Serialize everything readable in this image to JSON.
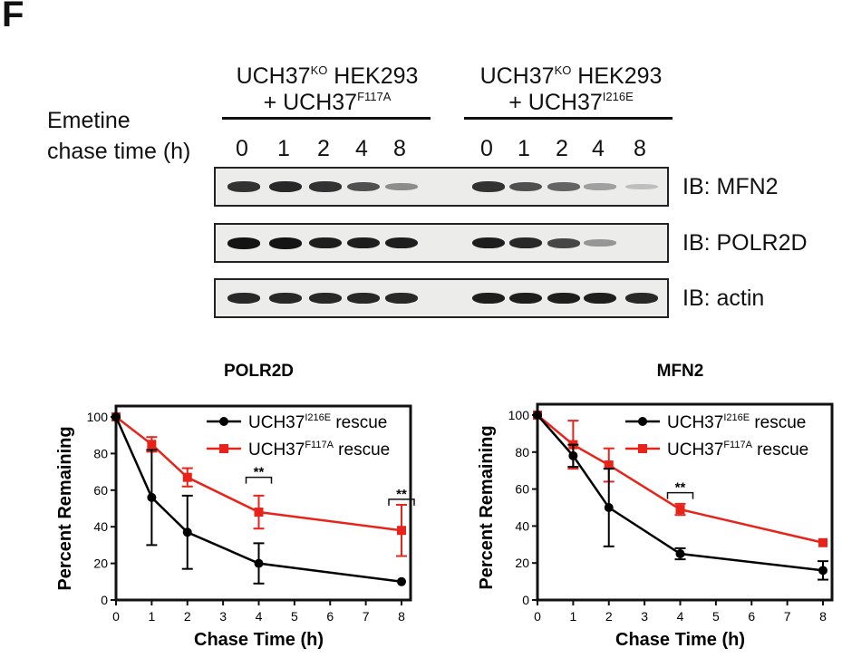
{
  "figure": {
    "panel_label": "F",
    "treatment_label_line1": "Emetine",
    "treatment_label_line2": "chase time (h)",
    "conditions": [
      {
        "line1_main": "UCH37",
        "line1_sup": "KO",
        "line1_rest": " HEK293",
        "line2_main": "+ UCH37",
        "line2_sup": "F117A"
      },
      {
        "line1_main": "UCH37",
        "line1_sup": "KO",
        "line1_rest": " HEK293",
        "line2_main": "+ UCH37",
        "line2_sup": "I216E"
      }
    ],
    "lane_labels": [
      "0",
      "1",
      "2",
      "4",
      "8",
      "0",
      "1",
      "2",
      "4",
      "8"
    ],
    "blots": [
      {
        "label": "IB: MFN2",
        "intensities": [
          0.85,
          0.9,
          0.85,
          0.7,
          0.4,
          0.85,
          0.7,
          0.6,
          0.3,
          0.15
        ]
      },
      {
        "label": "IB: POLR2D",
        "intensities": [
          1.0,
          1.0,
          0.95,
          0.95,
          0.95,
          0.95,
          0.9,
          0.75,
          0.35,
          0.0
        ]
      },
      {
        "label": "IB: actin",
        "intensities": [
          0.9,
          0.9,
          0.9,
          0.9,
          0.9,
          0.95,
          0.95,
          0.95,
          0.95,
          0.9
        ]
      }
    ]
  },
  "chart_data": [
    {
      "type": "line",
      "title": "POLR2D",
      "xlabel": "Chase Time (h)",
      "ylabel": "Percent Remaining",
      "xlim": [
        0,
        8
      ],
      "ylim": [
        0,
        100
      ],
      "xticks": [
        0,
        1,
        2,
        3,
        4,
        5,
        6,
        7,
        8
      ],
      "yticks": [
        0,
        20,
        40,
        60,
        80,
        100
      ],
      "grid": false,
      "legend": "top-right",
      "series": [
        {
          "name": "UCH37",
          "name_sup": "I216E",
          "name_suffix": " rescue",
          "color": "#000000",
          "marker": "circle",
          "x": [
            0,
            1,
            2,
            4,
            8
          ],
          "y": [
            100,
            56,
            37,
            20,
            10
          ],
          "err": [
            0,
            26,
            20,
            11,
            0
          ]
        },
        {
          "name": "UCH37",
          "name_sup": "F117A",
          "name_suffix": " rescue",
          "color": "#e8241a",
          "marker": "square",
          "x": [
            0,
            1,
            2,
            4,
            8
          ],
          "y": [
            100,
            85,
            67,
            48,
            38
          ],
          "err": [
            0,
            4,
            5,
            9,
            14
          ]
        }
      ],
      "annotations": [
        {
          "x": 4,
          "y": 67,
          "text": "**"
        },
        {
          "x": 8,
          "y": 55,
          "text": "**"
        }
      ]
    },
    {
      "type": "line",
      "title": "MFN2",
      "xlabel": "Chase Time (h)",
      "ylabel": "Percent Remaining",
      "xlim": [
        0,
        8
      ],
      "ylim": [
        0,
        100
      ],
      "xticks": [
        0,
        1,
        2,
        3,
        4,
        5,
        6,
        7,
        8
      ],
      "yticks": [
        0,
        20,
        40,
        60,
        80,
        100
      ],
      "grid": false,
      "legend": "top-right",
      "series": [
        {
          "name": "UCH37",
          "name_sup": "I216E",
          "name_suffix": " rescue",
          "color": "#000000",
          "marker": "circle",
          "x": [
            0,
            1,
            2,
            4,
            8
          ],
          "y": [
            100,
            78,
            50,
            25,
            16
          ],
          "err": [
            0,
            6,
            21,
            3,
            5
          ]
        },
        {
          "name": "UCH37",
          "name_sup": "F117A",
          "name_suffix": " rescue",
          "color": "#e8241a",
          "marker": "square",
          "x": [
            0,
            1,
            2,
            4,
            8
          ],
          "y": [
            100,
            84,
            73,
            49,
            31
          ],
          "err": [
            0,
            13,
            9,
            3,
            0
          ]
        }
      ],
      "annotations": [
        {
          "x": 4,
          "y": 58,
          "text": "**"
        }
      ]
    }
  ]
}
